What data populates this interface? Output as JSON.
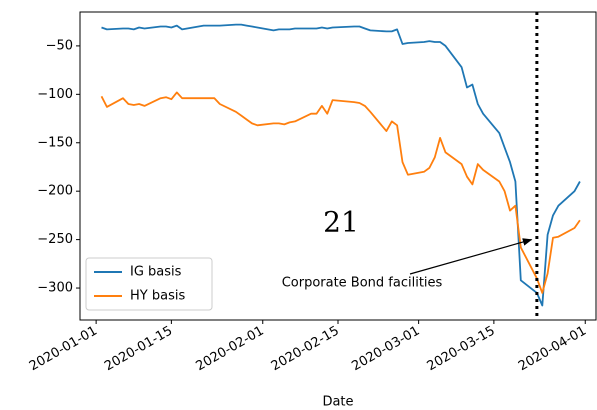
{
  "chart_data": {
    "type": "line",
    "xlabel": "Date",
    "overlay_text": "21",
    "x": [
      "2020-01-02",
      "2020-01-03",
      "2020-01-06",
      "2020-01-07",
      "2020-01-08",
      "2020-01-09",
      "2020-01-10",
      "2020-01-13",
      "2020-01-14",
      "2020-01-15",
      "2020-01-16",
      "2020-01-17",
      "2020-01-21",
      "2020-01-22",
      "2020-01-23",
      "2020-01-24",
      "2020-01-27",
      "2020-01-28",
      "2020-01-29",
      "2020-01-30",
      "2020-01-31",
      "2020-02-03",
      "2020-02-04",
      "2020-02-05",
      "2020-02-06",
      "2020-02-07",
      "2020-02-10",
      "2020-02-11",
      "2020-02-12",
      "2020-02-13",
      "2020-02-14",
      "2020-02-18",
      "2020-02-19",
      "2020-02-20",
      "2020-02-21",
      "2020-02-24",
      "2020-02-25",
      "2020-02-26",
      "2020-02-27",
      "2020-02-28",
      "2020-03-02",
      "2020-03-03",
      "2020-03-04",
      "2020-03-05",
      "2020-03-06",
      "2020-03-09",
      "2020-03-10",
      "2020-03-11",
      "2020-03-12",
      "2020-03-13",
      "2020-03-16",
      "2020-03-17",
      "2020-03-18",
      "2020-03-19",
      "2020-03-20",
      "2020-03-23",
      "2020-03-24",
      "2020-03-25",
      "2020-03-26",
      "2020-03-27",
      "2020-03-30",
      "2020-03-31"
    ],
    "series": [
      {
        "name": "IG basis",
        "color": "#1f77b4",
        "values": [
          -31,
          -33,
          -32,
          -32,
          -33,
          -31,
          -32,
          -30,
          -30,
          -31,
          -29,
          -33,
          -29,
          -29,
          -29,
          -29,
          -28,
          -28,
          -29,
          -30,
          -31,
          -34,
          -33,
          -33,
          -33,
          -32,
          -32,
          -32,
          -31,
          -32,
          -31,
          -30,
          -30,
          -32,
          -34,
          -35,
          -35,
          -33,
          -48,
          -47,
          -46,
          -45,
          -46,
          -46,
          -50,
          -72,
          -93,
          -90,
          -110,
          -120,
          -140,
          -155,
          -170,
          -190,
          -292,
          -305,
          -318,
          -245,
          -225,
          -215,
          -200,
          -190
        ]
      },
      {
        "name": "HY basis",
        "color": "#ff7f0e",
        "values": [
          -102,
          -113,
          -104,
          -110,
          -111,
          -110,
          -112,
          -104,
          -103,
          -105,
          -98,
          -104,
          -104,
          -104,
          -104,
          -110,
          -118,
          -122,
          -126,
          -130,
          -132,
          -130,
          -130,
          -131,
          -129,
          -128,
          -120,
          -120,
          -112,
          -120,
          -106,
          -108,
          -109,
          -112,
          -118,
          -138,
          -128,
          -132,
          -170,
          -183,
          -180,
          -176,
          -165,
          -145,
          -160,
          -172,
          -185,
          -193,
          -172,
          -178,
          -190,
          -200,
          -220,
          -215,
          -258,
          -290,
          -305,
          -285,
          -248,
          -247,
          -238,
          -230
        ]
      }
    ],
    "xlim": [
      "2019-12-29",
      "2020-04-03"
    ],
    "xticks": [
      "2020-01-01",
      "2020-01-15",
      "2020-02-01",
      "2020-02-15",
      "2020-03-01",
      "2020-03-15",
      "2020-04-01"
    ],
    "ylim": [
      -333,
      -15
    ],
    "yticks": [
      {
        "value": -50,
        "label": "−50"
      },
      {
        "value": -100,
        "label": "−100"
      },
      {
        "value": -150,
        "label": "−150"
      },
      {
        "value": -200,
        "label": "−200"
      },
      {
        "value": -250,
        "label": "−250"
      },
      {
        "value": -300,
        "label": "−300"
      }
    ],
    "vline_x": "2020-03-23",
    "annotation": {
      "text": "Corporate Bond facilities",
      "xy": [
        "2020-03-22",
        -250
      ]
    },
    "legend": "lower left"
  }
}
